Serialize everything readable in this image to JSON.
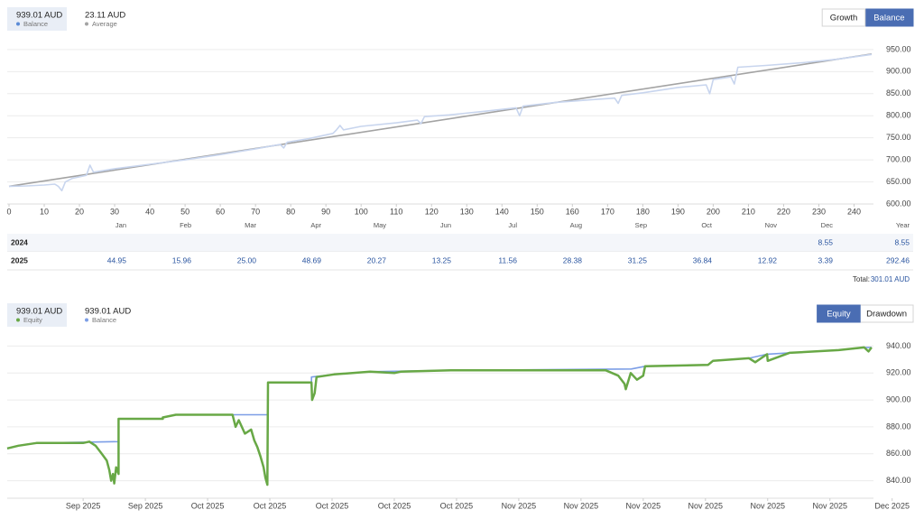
{
  "chart_data": [
    {
      "type": "line",
      "buttons": [
        "Growth",
        "Balance"
      ],
      "active_button": 1,
      "series": [
        {
          "name": "Balance",
          "summary": "939.01 AUD",
          "color": "#c8d5ee",
          "dot_color": "#5b8bd6",
          "x": [
            0,
            5,
            10,
            13,
            14,
            15,
            16,
            18,
            22,
            23,
            24,
            30,
            40,
            50,
            60,
            70,
            77,
            78,
            79,
            85,
            92,
            93,
            94,
            95,
            100,
            110,
            116,
            117,
            118,
            125,
            135,
            144,
            145,
            146,
            155,
            165,
            172,
            173,
            174,
            180,
            190,
            198,
            199,
            200,
            205,
            206,
            207,
            215,
            225,
            235,
            245
          ],
          "values": [
            640,
            641,
            643,
            645,
            640,
            630,
            650,
            658,
            665,
            688,
            672,
            680,
            690,
            700,
            712,
            725,
            735,
            727,
            740,
            748,
            760,
            768,
            778,
            768,
            776,
            784,
            790,
            782,
            798,
            802,
            810,
            818,
            800,
            822,
            830,
            836,
            840,
            828,
            846,
            852,
            864,
            870,
            850,
            882,
            888,
            872,
            910,
            914,
            920,
            928,
            939
          ]
        },
        {
          "name": "Average",
          "summary": "23.11 AUD",
          "color": "#a3a3a3",
          "dot_color": "#a3a3a3",
          "x": [
            0,
            245
          ],
          "values": [
            640,
            940
          ]
        }
      ],
      "xlim": [
        0,
        245
      ],
      "xticks": [
        0,
        10,
        20,
        30,
        40,
        50,
        60,
        70,
        80,
        90,
        100,
        110,
        120,
        130,
        140,
        150,
        160,
        170,
        180,
        190,
        200,
        210,
        220,
        230,
        240
      ],
      "ylim": [
        600,
        958
      ],
      "yticks": [
        {
          "value": 600,
          "label": "600.00"
        },
        {
          "value": 650,
          "label": "650.00"
        },
        {
          "value": 700,
          "label": "700.00"
        },
        {
          "value": 750,
          "label": "750.00"
        },
        {
          "value": 800,
          "label": "800.00"
        },
        {
          "value": 850,
          "label": "850.00"
        },
        {
          "value": 900,
          "label": "900.00"
        },
        {
          "value": 950,
          "label": "950.00"
        }
      ],
      "grid": true
    },
    {
      "type": "line",
      "buttons": [
        "Equity",
        "Drawdown"
      ],
      "active_button": 0,
      "series": [
        {
          "name": "Equity",
          "summary": "939.01 AUD",
          "color": "#68a846",
          "dot_color": "#68a846",
          "x": [
            -1.22,
            -1.04,
            -0.75,
            0,
            0.1,
            0.2,
            0.3,
            0.38,
            0.42,
            0.45,
            0.48,
            0.5,
            0.53,
            0.57,
            0.57,
            1.28,
            1.28,
            1.49,
            2.4,
            2.45,
            2.5,
            2.6,
            2.7,
            2.75,
            2.8,
            2.85,
            2.9,
            2.93,
            2.96,
            2.97,
            3.67,
            3.68,
            3.72,
            3.75,
            4.03,
            4.61,
            5.0,
            5.1,
            5.91,
            8.4,
            8.6,
            8.7,
            8.72,
            8.8,
            8.9,
            9.0,
            9.03,
            10.04,
            10.12,
            10.7,
            10.8,
            10.99,
            11.0,
            11.35,
            12.14,
            12.55,
            12.62,
            12.67
          ],
          "values": [
            864,
            866,
            868,
            868,
            869,
            866,
            860,
            855,
            848,
            840,
            845,
            838,
            850,
            845,
            886,
            886,
            887,
            889,
            889,
            880,
            885,
            875,
            878,
            870,
            865,
            858,
            850,
            842,
            837,
            913,
            913,
            900,
            905,
            917,
            919,
            921,
            920,
            921,
            922,
            922,
            918,
            912,
            908,
            920,
            915,
            918,
            925,
            926,
            929,
            931,
            928,
            934,
            929,
            935,
            937,
            939,
            936,
            939
          ]
        },
        {
          "name": "Balance",
          "summary": "939.01 AUD",
          "color": "#7c9ee6",
          "dot_color": "#7c9ee6",
          "x": [
            -1.22,
            -1.04,
            -0.75,
            0.57,
            0.57,
            1.28,
            1.28,
            1.49,
            2.97,
            2.97,
            3.67,
            3.67,
            4.03,
            4.61,
            5.91,
            8.81,
            9.03,
            10.04,
            10.12,
            10.7,
            10.99,
            11.35,
            12.14,
            12.58,
            12.67
          ],
          "values": [
            864,
            866,
            868,
            869,
            886,
            886,
            887,
            889,
            889,
            913,
            913,
            917,
            919,
            921,
            922,
            923,
            925,
            926,
            929,
            931,
            934,
            935,
            937,
            939,
            939
          ]
        }
      ],
      "xlim": [
        -1.22,
        12.7
      ],
      "xticks": [
        {
          "value": 0,
          "label": "Sep 2025"
        },
        {
          "value": 1,
          "label": "Sep 2025"
        },
        {
          "value": 2,
          "label": "Oct 2025"
        },
        {
          "value": 3,
          "label": "Oct 2025"
        },
        {
          "value": 4,
          "label": "Oct 2025"
        },
        {
          "value": 5,
          "label": "Oct 2025"
        },
        {
          "value": 6,
          "label": "Oct 2025"
        },
        {
          "value": 7,
          "label": "Nov 2025"
        },
        {
          "value": 8,
          "label": "Nov 2025"
        },
        {
          "value": 9,
          "label": "Nov 2025"
        },
        {
          "value": 10,
          "label": "Nov 2025"
        },
        {
          "value": 11,
          "label": "Nov 2025"
        },
        {
          "value": 12,
          "label": "Nov 2025"
        },
        {
          "value": 13,
          "label": "Dec 2025"
        }
      ],
      "ylim": [
        827,
        949
      ],
      "yticks": [
        {
          "value": 840,
          "label": "840.00"
        },
        {
          "value": 860,
          "label": "860.00"
        },
        {
          "value": 880,
          "label": "880.00"
        },
        {
          "value": 900,
          "label": "900.00"
        },
        {
          "value": 920,
          "label": "920.00"
        },
        {
          "value": 940,
          "label": "940.00"
        }
      ],
      "grid": true
    }
  ],
  "table": {
    "columns": [
      "Jan",
      "Feb",
      "Mar",
      "Apr",
      "May",
      "Jun",
      "Jul",
      "Aug",
      "Sep",
      "Oct",
      "Nov",
      "Dec",
      "Year"
    ],
    "rows": [
      {
        "year": "2024",
        "cells": [
          null,
          null,
          null,
          null,
          null,
          null,
          null,
          null,
          null,
          null,
          null,
          "8.55",
          "8.55"
        ]
      },
      {
        "year": "2025",
        "cells": [
          "44.95",
          "15.96",
          "25.00",
          "48.69",
          "20.27",
          "13.25",
          "11.56",
          "28.38",
          "31.25",
          "36.84",
          "12.92",
          "3.39",
          "292.46"
        ]
      }
    ],
    "total_label": "Total:",
    "total": "301.01 AUD"
  }
}
